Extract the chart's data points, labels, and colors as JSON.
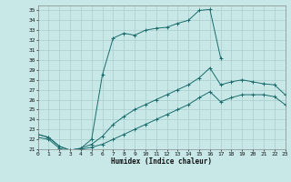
{
  "xlabel": "Humidex (Indice chaleur)",
  "background_color": "#c8e8e8",
  "line_color": "#1a6b6b",
  "grid_color": "#aacccc",
  "xlim": [
    0,
    23
  ],
  "ylim": [
    21,
    35.5
  ],
  "xticks": [
    0,
    1,
    2,
    3,
    4,
    5,
    6,
    7,
    8,
    9,
    10,
    11,
    12,
    13,
    14,
    15,
    16,
    17,
    18,
    19,
    20,
    21,
    22,
    23
  ],
  "yticks": [
    21,
    22,
    23,
    24,
    25,
    26,
    27,
    28,
    29,
    30,
    31,
    32,
    33,
    34,
    35
  ],
  "curve1_x": [
    0,
    1,
    2,
    3,
    4,
    5,
    6,
    7,
    8,
    9,
    10,
    11,
    12,
    13,
    14,
    15,
    16,
    17
  ],
  "curve1_y": [
    22.5,
    22.2,
    21.3,
    20.9,
    21.1,
    22.0,
    28.5,
    32.2,
    32.7,
    32.5,
    33.0,
    33.2,
    33.3,
    33.7,
    34.0,
    35.0,
    35.1,
    30.2
  ],
  "curve2_x": [
    0,
    1,
    2,
    3,
    4,
    5,
    6,
    7,
    8,
    9,
    10,
    11,
    12,
    13,
    14,
    15,
    16,
    17,
    18,
    19,
    20,
    21,
    22,
    23
  ],
  "curve2_y": [
    22.5,
    22.2,
    21.3,
    20.9,
    21.1,
    21.5,
    22.3,
    23.5,
    24.3,
    25.0,
    25.5,
    26.0,
    26.5,
    27.0,
    27.5,
    28.2,
    29.2,
    27.5,
    27.8,
    28.0,
    27.8,
    27.6,
    27.5,
    26.5
  ],
  "curve3_x": [
    0,
    1,
    2,
    3,
    4,
    5,
    6,
    7,
    8,
    9,
    10,
    11,
    12,
    13,
    14,
    15,
    16,
    17,
    18,
    19,
    20,
    21,
    22,
    23
  ],
  "curve3_y": [
    22.2,
    22.0,
    21.1,
    20.8,
    21.0,
    21.2,
    21.5,
    22.0,
    22.5,
    23.0,
    23.5,
    24.0,
    24.5,
    25.0,
    25.5,
    26.2,
    26.8,
    25.8,
    26.2,
    26.5,
    26.5,
    26.5,
    26.3,
    25.5
  ]
}
